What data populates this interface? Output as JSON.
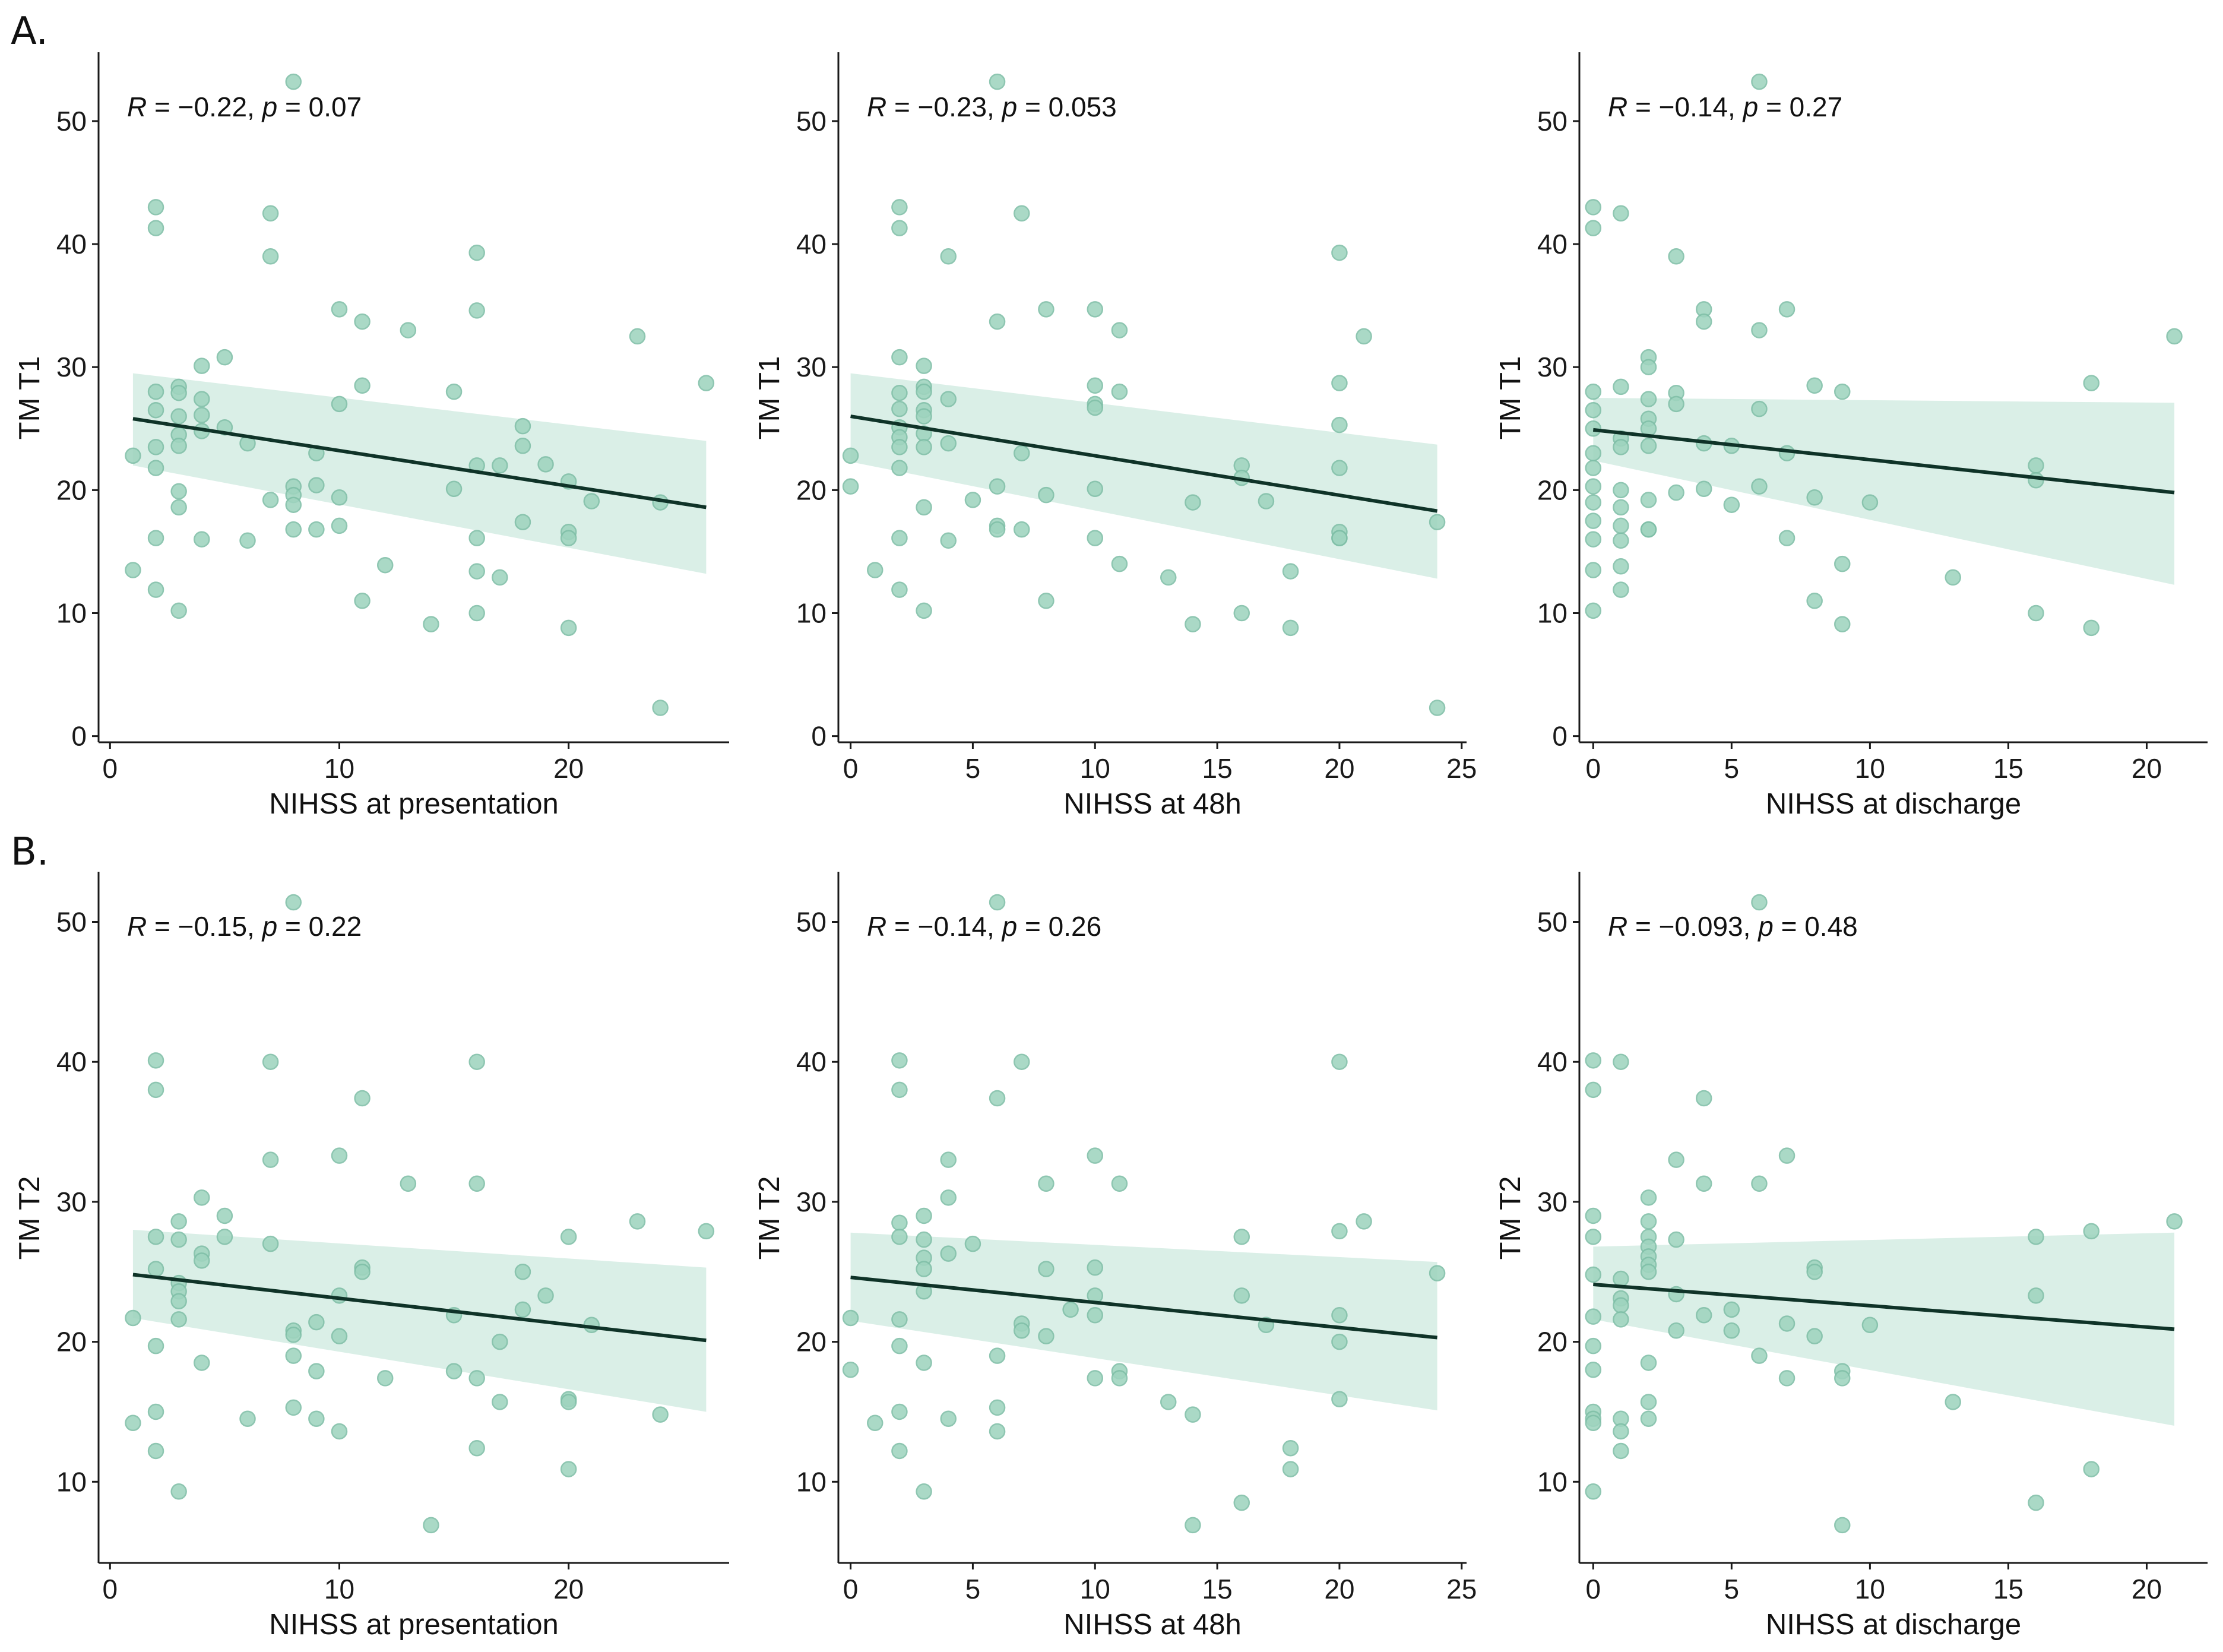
{
  "figure": {
    "row_labels": [
      "A.",
      "B."
    ],
    "colors": {
      "point_fill": "#9fd4bf",
      "point_stroke": "#7fbfa7",
      "band": "#d3ece3",
      "line": "#0f3328",
      "axis": "#1a1a1a",
      "background": "#ffffff"
    }
  },
  "chart_data": [
    {
      "type": "scatter",
      "row": "A.",
      "ylabel": "TM T1",
      "xlabel": "NIHSS at presentation",
      "xlim": [
        -0.5,
        27
      ],
      "ylim": [
        -0.5,
        55.5
      ],
      "xticks": [
        0,
        10,
        20
      ],
      "yticks": [
        0,
        10,
        20,
        30,
        40,
        50
      ],
      "annotation": {
        "r_label": "R",
        "r_text": " = −0.22, ",
        "p_label": "p",
        "p_text": " = 0.07"
      },
      "regression": {
        "x": [
          1,
          26
        ],
        "y": [
          25.8,
          18.6
        ],
        "ci_lower": [
          22.0,
          13.2
        ],
        "ci_upper": [
          29.5,
          24.0
        ]
      },
      "points": {
        "x": [
          1,
          1,
          2,
          2,
          2,
          2,
          2,
          2,
          2,
          2,
          3,
          3,
          3,
          3,
          3,
          3,
          3,
          3,
          4,
          4,
          4,
          4,
          4,
          5,
          5,
          6,
          6,
          7,
          7,
          7,
          8,
          8,
          8,
          8,
          8,
          9,
          9,
          9,
          10,
          10,
          10,
          10,
          11,
          11,
          11,
          12,
          13,
          14,
          15,
          15,
          16,
          16,
          16,
          16,
          16,
          16,
          17,
          17,
          18,
          18,
          18,
          19,
          20,
          20,
          20,
          20,
          21,
          23,
          24,
          24,
          26
        ],
        "y": [
          22.8,
          13.5,
          43.0,
          41.3,
          28.0,
          26.5,
          23.5,
          21.8,
          16.1,
          11.9,
          28.4,
          27.9,
          26.0,
          24.5,
          23.6,
          19.9,
          18.6,
          10.2,
          30.1,
          27.4,
          26.1,
          24.8,
          16.0,
          30.8,
          25.1,
          23.8,
          15.9,
          42.5,
          39.0,
          19.2,
          53.2,
          20.3,
          19.6,
          18.8,
          16.8,
          23.0,
          20.4,
          16.8,
          34.7,
          27.0,
          19.4,
          17.1,
          33.7,
          28.5,
          11.0,
          13.9,
          33.0,
          9.1,
          28.0,
          20.1,
          39.3,
          34.6,
          16.1,
          13.4,
          10.0,
          22.0,
          22.0,
          12.9,
          25.2,
          23.6,
          17.4,
          22.1,
          20.7,
          16.6,
          16.1,
          8.8,
          19.1,
          32.5,
          2.3,
          19.0,
          28.7
        ]
      }
    },
    {
      "type": "scatter",
      "row": "A.",
      "ylabel": "TM T1",
      "xlabel": "NIHSS at 48h",
      "xlim": [
        -0.5,
        25.2
      ],
      "ylim": [
        -0.5,
        55.5
      ],
      "xticks": [
        0,
        5,
        10,
        15,
        20,
        25
      ],
      "yticks": [
        0,
        10,
        20,
        30,
        40,
        50
      ],
      "annotation": {
        "r_label": "R",
        "r_text": " = −0.23, ",
        "p_label": "p",
        "p_text": " = 0.053"
      },
      "regression": {
        "x": [
          0,
          24
        ],
        "y": [
          26.0,
          18.3
        ],
        "ci_lower": [
          22.3,
          12.8
        ],
        "ci_upper": [
          29.5,
          23.7
        ]
      },
      "points": {
        "x": [
          0,
          0,
          1,
          2,
          2,
          2,
          2,
          2,
          2,
          2,
          2,
          2,
          2,
          2,
          3,
          3,
          3,
          3,
          3,
          3,
          3,
          3,
          3,
          4,
          4,
          4,
          4,
          5,
          6,
          6,
          6,
          6,
          6,
          7,
          7,
          7,
          8,
          8,
          8,
          10,
          10,
          10,
          10,
          10,
          10,
          11,
          11,
          11,
          13,
          14,
          14,
          16,
          16,
          16,
          17,
          18,
          18,
          20,
          20,
          20,
          20,
          20,
          20,
          20,
          21,
          24,
          24
        ],
        "y": [
          22.8,
          20.3,
          13.5,
          43.0,
          41.3,
          30.8,
          27.9,
          26.6,
          25.1,
          24.3,
          23.5,
          21.8,
          16.1,
          11.9,
          30.1,
          28.4,
          28.0,
          26.5,
          26.0,
          24.6,
          23.5,
          18.6,
          10.2,
          39.0,
          27.4,
          23.8,
          15.9,
          19.2,
          53.2,
          33.7,
          20.3,
          17.1,
          16.8,
          42.5,
          23.0,
          16.8,
          34.7,
          19.6,
          11.0,
          34.7,
          28.5,
          27.0,
          26.7,
          20.1,
          16.1,
          33.0,
          28.0,
          14.0,
          12.9,
          19.0,
          9.1,
          22.0,
          21.0,
          10.0,
          19.1,
          13.4,
          8.8,
          39.3,
          28.7,
          25.3,
          21.8,
          16.6,
          16.1,
          16.1,
          32.5,
          17.4,
          2.3
        ]
      }
    },
    {
      "type": "scatter",
      "row": "A.",
      "ylabel": "TM T1",
      "xlabel": "NIHSS at discharge",
      "xlim": [
        -0.5,
        22.2
      ],
      "ylim": [
        -0.5,
        55.5
      ],
      "xticks": [
        0,
        5,
        10,
        15,
        20
      ],
      "yticks": [
        0,
        10,
        20,
        30,
        40,
        50
      ],
      "annotation": {
        "r_label": "R",
        "r_text": " = −0.14, ",
        "p_label": "p",
        "p_text": " = 0.27"
      },
      "regression": {
        "x": [
          0,
          21
        ],
        "y": [
          24.9,
          19.8
        ],
        "ci_lower": [
          22.4,
          12.3
        ],
        "ci_upper": [
          27.5,
          27.1
        ]
      },
      "points": {
        "x": [
          0,
          0,
          0,
          0,
          0,
          0,
          0,
          0,
          0,
          0,
          0,
          0,
          0,
          1,
          1,
          1,
          1,
          1,
          1,
          1,
          1,
          1,
          1,
          2,
          2,
          2,
          2,
          2,
          2,
          2,
          2,
          2,
          3,
          3,
          3,
          3,
          4,
          4,
          4,
          4,
          5,
          5,
          6,
          6,
          6,
          6,
          7,
          7,
          7,
          8,
          8,
          8,
          9,
          9,
          9,
          10,
          13,
          16,
          16,
          16,
          18,
          18,
          21
        ],
        "y": [
          43.0,
          41.3,
          28.0,
          26.5,
          25.0,
          23.0,
          21.8,
          20.3,
          19.0,
          17.5,
          16.0,
          13.5,
          10.2,
          42.5,
          28.4,
          24.2,
          23.5,
          20.0,
          18.6,
          17.1,
          15.9,
          13.8,
          11.9,
          30.8,
          30.0,
          27.4,
          25.8,
          25.0,
          23.6,
          19.2,
          16.8,
          16.8,
          39.0,
          27.9,
          27.0,
          19.8,
          34.7,
          33.7,
          23.8,
          20.1,
          23.6,
          18.8,
          53.2,
          33.0,
          26.6,
          20.3,
          34.7,
          23.0,
          16.1,
          28.5,
          19.4,
          11.0,
          28.0,
          14.0,
          9.1,
          19.0,
          12.9,
          22.0,
          20.8,
          10.0,
          28.7,
          8.8,
          32.5
        ]
      }
    },
    {
      "type": "scatter",
      "row": "B.",
      "ylabel": "TM T2",
      "xlabel": "NIHSS at presentation",
      "xlim": [
        -0.5,
        27
      ],
      "ylim": [
        4.2,
        53.5
      ],
      "xticks": [
        0,
        10,
        20
      ],
      "yticks": [
        10,
        20,
        30,
        40,
        50
      ],
      "annotation": {
        "r_label": "R",
        "r_text": " = −0.15, ",
        "p_label": "p",
        "p_text": " = 0.22"
      },
      "regression": {
        "x": [
          1,
          26
        ],
        "y": [
          24.8,
          20.1
        ],
        "ci_lower": [
          21.7,
          15.0
        ],
        "ci_upper": [
          28.0,
          25.3
        ]
      },
      "points": {
        "x": [
          1,
          1,
          2,
          2,
          2,
          2,
          2,
          2,
          2,
          3,
          3,
          3,
          3,
          3,
          3,
          3,
          4,
          4,
          4,
          4,
          5,
          5,
          6,
          7,
          7,
          7,
          8,
          8,
          8,
          8,
          8,
          9,
          9,
          9,
          10,
          10,
          10,
          10,
          11,
          11,
          11,
          12,
          13,
          14,
          15,
          15,
          16,
          16,
          16,
          16,
          17,
          17,
          18,
          18,
          19,
          20,
          20,
          20,
          20,
          21,
          23,
          24,
          26
        ],
        "y": [
          21.7,
          14.2,
          40.1,
          38.0,
          27.5,
          25.2,
          19.7,
          15.0,
          12.2,
          28.6,
          27.3,
          24.2,
          23.6,
          22.9,
          21.6,
          9.3,
          30.3,
          26.3,
          25.8,
          18.5,
          29.0,
          27.5,
          14.5,
          40.0,
          33.0,
          27.0,
          51.4,
          20.8,
          20.5,
          19.0,
          15.3,
          21.4,
          17.9,
          14.5,
          33.3,
          23.3,
          20.4,
          13.6,
          37.4,
          25.3,
          25.0,
          17.4,
          31.3,
          6.9,
          21.9,
          17.9,
          40.0,
          31.3,
          17.4,
          12.4,
          20.0,
          15.7,
          25.0,
          22.3,
          23.3,
          27.5,
          15.9,
          15.7,
          10.9,
          21.2,
          28.6,
          14.8,
          27.9
        ]
      }
    },
    {
      "type": "scatter",
      "row": "B.",
      "ylabel": "TM T2",
      "xlabel": "NIHSS at 48h",
      "xlim": [
        -0.5,
        25.2
      ],
      "ylim": [
        4.2,
        53.5
      ],
      "xticks": [
        0,
        5,
        10,
        15,
        20,
        25
      ],
      "yticks": [
        10,
        20,
        30,
        40,
        50
      ],
      "annotation": {
        "r_label": "R",
        "r_text": " = −0.14, ",
        "p_label": "p",
        "p_text": " = 0.26"
      },
      "regression": {
        "x": [
          0,
          24
        ],
        "y": [
          24.6,
          20.3
        ],
        "ci_lower": [
          21.5,
          15.1
        ],
        "ci_upper": [
          27.8,
          25.7
        ]
      },
      "points": {
        "x": [
          0,
          0,
          1,
          2,
          2,
          2,
          2,
          2,
          2,
          2,
          2,
          3,
          3,
          3,
          3,
          3,
          3,
          3,
          4,
          4,
          4,
          4,
          5,
          6,
          6,
          6,
          6,
          6,
          7,
          7,
          7,
          8,
          8,
          8,
          9,
          10,
          10,
          10,
          10,
          10,
          11,
          11,
          11,
          13,
          14,
          14,
          16,
          16,
          16,
          17,
          18,
          18,
          20,
          20,
          20,
          20,
          20,
          21,
          24
        ],
        "y": [
          21.7,
          18.0,
          14.2,
          40.1,
          38.0,
          28.5,
          27.5,
          21.6,
          19.7,
          15.0,
          12.2,
          29.0,
          27.3,
          26.0,
          25.2,
          23.6,
          18.5,
          9.3,
          33.0,
          30.3,
          26.3,
          14.5,
          27.0,
          51.4,
          37.4,
          19.0,
          15.3,
          13.6,
          40.0,
          21.3,
          20.8,
          31.3,
          25.2,
          20.4,
          22.3,
          33.3,
          25.3,
          23.3,
          21.9,
          17.4,
          31.3,
          17.9,
          17.4,
          15.7,
          14.8,
          6.9,
          27.5,
          23.3,
          8.5,
          21.2,
          12.4,
          10.9,
          40.0,
          27.9,
          21.9,
          20.0,
          15.9,
          28.6,
          24.9
        ]
      }
    },
    {
      "type": "scatter",
      "row": "B.",
      "ylabel": "TM T2",
      "xlabel": "NIHSS at discharge",
      "xlim": [
        -0.5,
        22.2
      ],
      "ylim": [
        4.2,
        53.5
      ],
      "xticks": [
        0,
        5,
        10,
        15,
        20
      ],
      "yticks": [
        10,
        20,
        30,
        40,
        50
      ],
      "annotation": {
        "r_label": "R",
        "r_text": " = −0.093, ",
        "p_label": "p",
        "p_text": " = 0.48"
      },
      "regression": {
        "x": [
          0,
          21
        ],
        "y": [
          24.1,
          20.9
        ],
        "ci_lower": [
          21.6,
          14.0
        ],
        "ci_upper": [
          26.8,
          27.8
        ]
      },
      "points": {
        "x": [
          0,
          0,
          0,
          0,
          0,
          0,
          0,
          0,
          0,
          0,
          0,
          0,
          1,
          1,
          1,
          1,
          1,
          1,
          1,
          1,
          2,
          2,
          2,
          2,
          2,
          2,
          2,
          2,
          2,
          2,
          3,
          3,
          3,
          3,
          4,
          4,
          4,
          5,
          5,
          6,
          6,
          6,
          7,
          7,
          7,
          8,
          8,
          8,
          9,
          9,
          9,
          10,
          13,
          16,
          16,
          16,
          18,
          18,
          21
        ],
        "y": [
          40.1,
          38.0,
          29.0,
          27.5,
          24.8,
          21.8,
          19.7,
          18.0,
          15.0,
          14.5,
          14.2,
          9.3,
          40.0,
          24.5,
          23.1,
          22.6,
          21.6,
          14.5,
          13.6,
          12.2,
          30.3,
          28.6,
          27.5,
          26.8,
          26.1,
          25.5,
          25.0,
          18.5,
          15.7,
          14.5,
          33.0,
          27.3,
          23.4,
          20.8,
          37.4,
          31.3,
          21.9,
          22.3,
          20.8,
          51.4,
          31.3,
          19.0,
          33.3,
          21.3,
          17.4,
          25.3,
          25.0,
          20.4,
          17.9,
          17.4,
          6.9,
          21.2,
          15.7,
          27.5,
          23.3,
          8.5,
          27.9,
          10.9,
          28.6
        ]
      }
    }
  ]
}
